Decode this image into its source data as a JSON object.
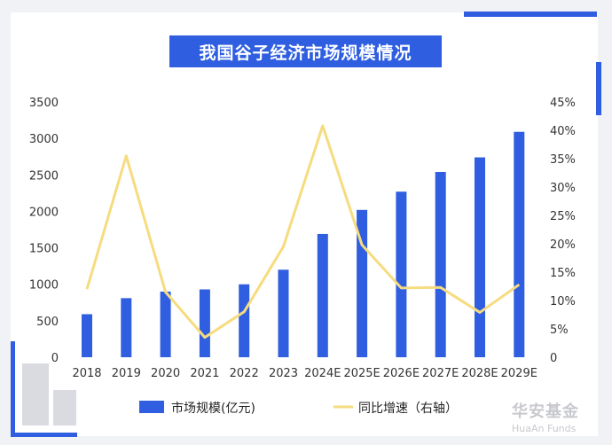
{
  "chart_data": {
    "type": "bar+line",
    "title": "我国谷子经济市场规模情况",
    "categories": [
      "2018",
      "2019",
      "2020",
      "2021",
      "2022",
      "2023",
      "2024E",
      "2025E",
      "2026E",
      "2027E",
      "2028E",
      "2029E"
    ],
    "series": [
      {
        "name": "市场规模(亿元)",
        "type": "bar",
        "axis": "left",
        "color": "#2f5fe0",
        "values": [
          590,
          810,
          900,
          930,
          1000,
          1200,
          1690,
          2020,
          2270,
          2540,
          2740,
          3090
        ]
      },
      {
        "name": "同比增速（右轴）",
        "type": "line",
        "axis": "right",
        "color": "#f6dc7e",
        "values": [
          12.0,
          35.5,
          11.5,
          3.5,
          8.0,
          19.5,
          40.8,
          19.8,
          12.2,
          12.3,
          7.9,
          12.8
        ]
      }
    ],
    "yleft": {
      "min": 0,
      "max": 3500,
      "ticks": [
        "0",
        "500",
        "1000",
        "1500",
        "2000",
        "2500",
        "3000",
        "3500"
      ]
    },
    "yright": {
      "min": 0,
      "max": 45,
      "ticks": [
        "0",
        "5%",
        "10%",
        "15%",
        "20%",
        "25%",
        "30%",
        "35%",
        "40%",
        "45%"
      ]
    },
    "legend_position": "bottom",
    "grid": false
  },
  "brand": {
    "cn": "华安基金",
    "en": "HuaAn Funds"
  }
}
